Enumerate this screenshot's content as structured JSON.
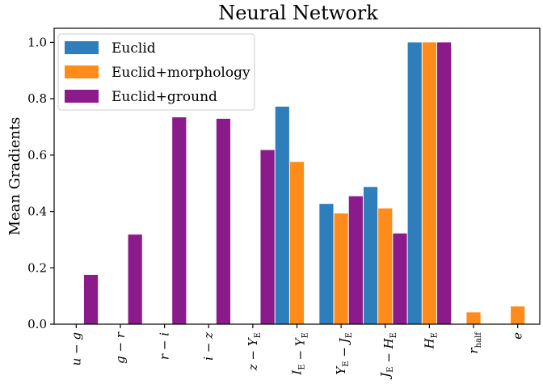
{
  "chart_data": {
    "type": "bar",
    "title": "Neural Network",
    "xlabel": "",
    "ylabel": "Mean Gradients",
    "ylim": [
      0,
      1.05
    ],
    "yticks": [
      "0.0",
      "0.2",
      "0.4",
      "0.6",
      "0.8",
      "1.0"
    ],
    "categories": [
      "u − g",
      "g − r",
      "r − i",
      "i − z",
      "z − Y_E",
      "I_E − Y_E",
      "Y_E − J_E",
      "J_E − H_E",
      "H_E",
      "r_half",
      "e"
    ],
    "series": [
      {
        "name": "Euclid",
        "color": "#2e7ebc",
        "values": [
          null,
          null,
          null,
          null,
          null,
          0.772,
          0.427,
          0.487,
          1.0,
          null,
          null
        ]
      },
      {
        "name": "Euclid+morphology",
        "color": "#ff8c1a",
        "values": [
          null,
          null,
          null,
          null,
          null,
          0.576,
          0.393,
          0.411,
          1.0,
          0.042,
          0.063
        ]
      },
      {
        "name": "Euclid+ground",
        "color": "#8b1a8b",
        "values": [
          0.175,
          0.318,
          0.734,
          0.729,
          0.618,
          null,
          0.454,
          0.322,
          1.0,
          null,
          null
        ]
      }
    ],
    "legend_position": "top-left"
  }
}
